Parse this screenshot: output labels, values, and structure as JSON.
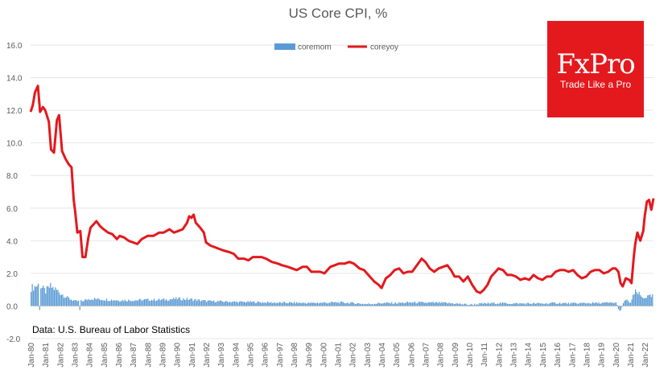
{
  "chart_data": {
    "type": "bar+line",
    "title": "US Core CPI, %",
    "xlabel": "",
    "ylabel": "",
    "ylim": [
      -2.0,
      16.0
    ],
    "yticks": [
      "-2.0",
      "0.0",
      "2.0",
      "4.0",
      "6.0",
      "8.0",
      "10.0",
      "12.0",
      "14.0",
      "16.0"
    ],
    "yticks_values": [
      -2,
      0,
      2,
      4,
      6,
      8,
      10,
      12,
      14,
      16
    ],
    "xticks": [
      "Jan-80",
      "Jan-81",
      "Jan-82",
      "Jan-83",
      "Jan-84",
      "Jan-85",
      "Jan-86",
      "Jan-87",
      "Jan-88",
      "Jan-89",
      "Jan-90",
      "Jan-91",
      "Jan-92",
      "Jan-93",
      "Jan-94",
      "Jan-95",
      "Jan-96",
      "Jan-97",
      "Jan-98",
      "Jan-99",
      "Jan-00",
      "Jan-01",
      "Jan-02",
      "Jan-03",
      "Jan-04",
      "Jan-05",
      "Jan-06",
      "Jan-07",
      "Jan-08",
      "Jan-09",
      "Jan-10",
      "Jan-11",
      "Jan-12",
      "Jan-13",
      "Jan-14",
      "Jan-15",
      "Jan-16",
      "Jan-17",
      "Jan-18",
      "Jan-19",
      "Jan-20",
      "Jan-21",
      "Jan-22"
    ],
    "x_start": 1980.0,
    "x_end": 2022.6,
    "grid": true,
    "legend_position": "top-center",
    "series": [
      {
        "name": "coremom",
        "kind": "bar",
        "color": "#5b9bd5",
        "anchors": [
          [
            1980.0,
            1.1
          ],
          [
            1980.5,
            1.3
          ],
          [
            1981.0,
            0.9
          ],
          [
            1981.3,
            1.2
          ],
          [
            1981.7,
            1.0
          ],
          [
            1982.0,
            0.8
          ],
          [
            1982.5,
            0.5
          ],
          [
            1983.0,
            0.3
          ],
          [
            1983.5,
            0.3
          ],
          [
            1984.0,
            0.45
          ],
          [
            1985.0,
            0.4
          ],
          [
            1986.0,
            0.35
          ],
          [
            1987.0,
            0.35
          ],
          [
            1988.0,
            0.38
          ],
          [
            1989.0,
            0.38
          ],
          [
            1990.0,
            0.45
          ],
          [
            1991.0,
            0.4
          ],
          [
            1992.0,
            0.3
          ],
          [
            1993.0,
            0.28
          ],
          [
            1994.0,
            0.25
          ],
          [
            1995.0,
            0.25
          ],
          [
            1996.0,
            0.22
          ],
          [
            1997.0,
            0.2
          ],
          [
            1998.0,
            0.2
          ],
          [
            1999.0,
            0.18
          ],
          [
            2000.0,
            0.2
          ],
          [
            2001.0,
            0.22
          ],
          [
            2002.0,
            0.18
          ],
          [
            2003.0,
            0.12
          ],
          [
            2004.0,
            0.18
          ],
          [
            2005.0,
            0.18
          ],
          [
            2006.0,
            0.22
          ],
          [
            2007.0,
            0.2
          ],
          [
            2008.0,
            0.2
          ],
          [
            2009.0,
            0.15
          ],
          [
            2010.0,
            0.08
          ],
          [
            2011.0,
            0.15
          ],
          [
            2012.0,
            0.18
          ],
          [
            2013.0,
            0.15
          ],
          [
            2014.0,
            0.15
          ],
          [
            2015.0,
            0.15
          ],
          [
            2016.0,
            0.18
          ],
          [
            2017.0,
            0.15
          ],
          [
            2018.0,
            0.18
          ],
          [
            2019.0,
            0.18
          ],
          [
            2020.0,
            0.2
          ],
          [
            2020.3,
            -0.4
          ],
          [
            2020.6,
            0.4
          ],
          [
            2021.0,
            0.2
          ],
          [
            2021.3,
            0.85
          ],
          [
            2021.5,
            0.8
          ],
          [
            2021.8,
            0.5
          ],
          [
            2022.0,
            0.55
          ],
          [
            2022.5,
            0.6
          ]
        ]
      },
      {
        "name": "coreyoy",
        "kind": "line",
        "color": "#e3191e",
        "points": [
          [
            1980.0,
            11.9
          ],
          [
            1980.15,
            12.3
          ],
          [
            1980.3,
            13.1
          ],
          [
            1980.5,
            13.5
          ],
          [
            1980.65,
            11.9
          ],
          [
            1980.85,
            12.2
          ],
          [
            1981.0,
            12.0
          ],
          [
            1981.25,
            11.3
          ],
          [
            1981.4,
            9.6
          ],
          [
            1981.6,
            9.4
          ],
          [
            1981.8,
            11.4
          ],
          [
            1981.95,
            11.7
          ],
          [
            1982.15,
            9.5
          ],
          [
            1982.4,
            9.0
          ],
          [
            1982.6,
            8.7
          ],
          [
            1982.8,
            8.5
          ],
          [
            1982.95,
            6.5
          ],
          [
            1983.05,
            5.8
          ],
          [
            1983.2,
            4.5
          ],
          [
            1983.4,
            4.6
          ],
          [
            1983.55,
            3.0
          ],
          [
            1983.75,
            3.0
          ],
          [
            1983.95,
            4.2
          ],
          [
            1984.1,
            4.8
          ],
          [
            1984.3,
            5.0
          ],
          [
            1984.5,
            5.2
          ],
          [
            1984.75,
            4.9
          ],
          [
            1985.0,
            4.7
          ],
          [
            1985.3,
            4.5
          ],
          [
            1985.6,
            4.4
          ],
          [
            1985.9,
            4.1
          ],
          [
            1986.1,
            4.3
          ],
          [
            1986.4,
            4.2
          ],
          [
            1986.7,
            4.0
          ],
          [
            1987.0,
            3.9
          ],
          [
            1987.3,
            3.8
          ],
          [
            1987.6,
            4.1
          ],
          [
            1988.0,
            4.3
          ],
          [
            1988.4,
            4.3
          ],
          [
            1988.8,
            4.5
          ],
          [
            1989.1,
            4.5
          ],
          [
            1989.5,
            4.7
          ],
          [
            1989.8,
            4.5
          ],
          [
            1990.1,
            4.6
          ],
          [
            1990.4,
            4.7
          ],
          [
            1990.7,
            5.1
          ],
          [
            1990.85,
            5.5
          ],
          [
            1991.0,
            5.4
          ],
          [
            1991.15,
            5.6
          ],
          [
            1991.3,
            5.1
          ],
          [
            1991.6,
            4.8
          ],
          [
            1991.85,
            4.5
          ],
          [
            1992.0,
            3.9
          ],
          [
            1992.3,
            3.7
          ],
          [
            1992.6,
            3.6
          ],
          [
            1992.9,
            3.5
          ],
          [
            1993.2,
            3.4
          ],
          [
            1993.6,
            3.3
          ],
          [
            1993.9,
            3.2
          ],
          [
            1994.2,
            2.9
          ],
          [
            1994.6,
            2.9
          ],
          [
            1994.9,
            2.8
          ],
          [
            1995.2,
            3.0
          ],
          [
            1995.5,
            3.0
          ],
          [
            1995.8,
            3.0
          ],
          [
            1996.1,
            2.9
          ],
          [
            1996.5,
            2.7
          ],
          [
            1996.9,
            2.6
          ],
          [
            1997.2,
            2.5
          ],
          [
            1997.6,
            2.4
          ],
          [
            1997.9,
            2.3
          ],
          [
            1998.2,
            2.2
          ],
          [
            1998.6,
            2.4
          ],
          [
            1998.9,
            2.4
          ],
          [
            1999.2,
            2.1
          ],
          [
            1999.5,
            2.1
          ],
          [
            1999.8,
            2.1
          ],
          [
            2000.1,
            2.0
          ],
          [
            2000.5,
            2.4
          ],
          [
            2000.8,
            2.5
          ],
          [
            2001.1,
            2.6
          ],
          [
            2001.5,
            2.6
          ],
          [
            2001.8,
            2.7
          ],
          [
            2002.1,
            2.6
          ],
          [
            2002.5,
            2.3
          ],
          [
            2002.8,
            2.2
          ],
          [
            2003.1,
            1.9
          ],
          [
            2003.5,
            1.5
          ],
          [
            2003.8,
            1.3
          ],
          [
            2004.0,
            1.1
          ],
          [
            2004.3,
            1.7
          ],
          [
            2004.6,
            1.9
          ],
          [
            2004.9,
            2.2
          ],
          [
            2005.2,
            2.3
          ],
          [
            2005.5,
            2.0
          ],
          [
            2005.8,
            2.1
          ],
          [
            2006.1,
            2.1
          ],
          [
            2006.5,
            2.6
          ],
          [
            2006.75,
            2.9
          ],
          [
            2007.0,
            2.7
          ],
          [
            2007.3,
            2.3
          ],
          [
            2007.6,
            2.1
          ],
          [
            2007.9,
            2.3
          ],
          [
            2008.2,
            2.4
          ],
          [
            2008.5,
            2.5
          ],
          [
            2008.75,
            2.2
          ],
          [
            2009.0,
            1.8
          ],
          [
            2009.3,
            1.8
          ],
          [
            2009.6,
            1.5
          ],
          [
            2009.9,
            1.8
          ],
          [
            2010.2,
            1.3
          ],
          [
            2010.5,
            0.9
          ],
          [
            2010.75,
            0.8
          ],
          [
            2011.0,
            1.0
          ],
          [
            2011.25,
            1.3
          ],
          [
            2011.5,
            1.8
          ],
          [
            2011.8,
            2.1
          ],
          [
            2012.0,
            2.3
          ],
          [
            2012.3,
            2.2
          ],
          [
            2012.6,
            1.9
          ],
          [
            2012.9,
            1.9
          ],
          [
            2013.2,
            1.8
          ],
          [
            2013.5,
            1.6
          ],
          [
            2013.8,
            1.7
          ],
          [
            2014.1,
            1.6
          ],
          [
            2014.4,
            1.9
          ],
          [
            2014.7,
            1.7
          ],
          [
            2015.0,
            1.6
          ],
          [
            2015.3,
            1.8
          ],
          [
            2015.6,
            1.8
          ],
          [
            2015.9,
            2.1
          ],
          [
            2016.2,
            2.2
          ],
          [
            2016.5,
            2.2
          ],
          [
            2016.8,
            2.1
          ],
          [
            2017.1,
            2.2
          ],
          [
            2017.4,
            1.9
          ],
          [
            2017.7,
            1.7
          ],
          [
            2018.0,
            1.8
          ],
          [
            2018.3,
            2.1
          ],
          [
            2018.6,
            2.2
          ],
          [
            2018.9,
            2.2
          ],
          [
            2019.2,
            2.0
          ],
          [
            2019.5,
            2.1
          ],
          [
            2019.8,
            2.3
          ],
          [
            2020.0,
            2.3
          ],
          [
            2020.2,
            2.1
          ],
          [
            2020.35,
            1.4
          ],
          [
            2020.5,
            1.2
          ],
          [
            2020.7,
            1.7
          ],
          [
            2020.95,
            1.6
          ],
          [
            2021.1,
            1.4
          ],
          [
            2021.25,
            3.0
          ],
          [
            2021.35,
            3.8
          ],
          [
            2021.5,
            4.5
          ],
          [
            2021.7,
            4.0
          ],
          [
            2021.9,
            4.6
          ],
          [
            2022.0,
            5.5
          ],
          [
            2022.15,
            6.4
          ],
          [
            2022.3,
            6.5
          ],
          [
            2022.45,
            5.9
          ],
          [
            2022.6,
            6.6
          ]
        ]
      }
    ]
  },
  "source_note": "Data: U.S. Bureau of Labor Statistics",
  "logo": {
    "name": "FxPro",
    "tagline": "Trade Like a Pro",
    "bg_color": "#e3191e"
  }
}
